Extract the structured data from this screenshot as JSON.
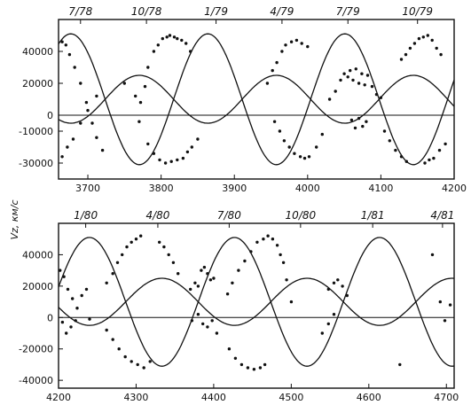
{
  "ylabel": "Vz, км/с",
  "chart_data": [
    {
      "type": "scatter",
      "panel": "top",
      "title": "",
      "xlabel": "",
      "ylabel": "Vz, км/с",
      "xlim": [
        3660,
        4200
      ],
      "ylim": [
        -40000,
        60000
      ],
      "x_ticks": [
        "3700",
        "3800",
        "3900",
        "4000",
        "4100",
        "4200"
      ],
      "x_tick_values": [
        3700,
        3800,
        3900,
        4000,
        4100,
        4200
      ],
      "y_ticks": [
        "40000",
        "20000",
        "0",
        "-10000",
        "-30000"
      ],
      "y_tick_values": [
        40000,
        20000,
        0,
        -10000,
        -30000
      ],
      "top_axis_labels": [
        "7/78",
        "10/78",
        "1/79",
        "4/79",
        "7/79",
        "10/79"
      ],
      "top_axis_values": [
        3690,
        3780,
        3875,
        3965,
        4055,
        4150
      ],
      "zero_line": true,
      "grid": false,
      "curves": [
        {
          "name": "",
          "period": 187,
          "phase": 3660,
          "mean": 10000,
          "amplitude": 41000,
          "min_phase": 0.59
        },
        {
          "name": "",
          "period": 187,
          "phase": 3660,
          "mean": 10000,
          "amplitude": -15000,
          "min_phase": 0.59
        }
      ],
      "points": [
        [
          3665,
          46000
        ],
        [
          3670,
          44000
        ],
        [
          3675,
          38000
        ],
        [
          3682,
          30000
        ],
        [
          3690,
          20000
        ],
        [
          3698,
          8000
        ],
        [
          3706,
          -5000
        ],
        [
          3712,
          -14000
        ],
        [
          3720,
          -22000
        ],
        [
          3665,
          -26000
        ],
        [
          3672,
          -20000
        ],
        [
          3680,
          -15000
        ],
        [
          3690,
          -5000
        ],
        [
          3700,
          3000
        ],
        [
          3712,
          12000
        ],
        [
          3750,
          20000
        ],
        [
          3765,
          12000
        ],
        [
          3772,
          8000
        ],
        [
          3778,
          18000
        ],
        [
          3782,
          30000
        ],
        [
          3790,
          40000
        ],
        [
          3796,
          44000
        ],
        [
          3802,
          48000
        ],
        [
          3808,
          49000
        ],
        [
          3812,
          50000
        ],
        [
          3818,
          49000
        ],
        [
          3822,
          48000
        ],
        [
          3828,
          47000
        ],
        [
          3834,
          45000
        ],
        [
          3840,
          40000
        ],
        [
          3770,
          -4000
        ],
        [
          3782,
          -18000
        ],
        [
          3790,
          -24000
        ],
        [
          3798,
          -28000
        ],
        [
          3806,
          -30000
        ],
        [
          3814,
          -29000
        ],
        [
          3822,
          -28000
        ],
        [
          3830,
          -27000
        ],
        [
          3836,
          -23000
        ],
        [
          3842,
          -20000
        ],
        [
          3850,
          -15000
        ],
        [
          3945,
          20000
        ],
        [
          3952,
          28000
        ],
        [
          3958,
          33000
        ],
        [
          3965,
          40000
        ],
        [
          3970,
          44000
        ],
        [
          3978,
          46000
        ],
        [
          3985,
          47000
        ],
        [
          3992,
          45000
        ],
        [
          4000,
          43000
        ],
        [
          3955,
          -4000
        ],
        [
          3962,
          -10000
        ],
        [
          3968,
          -16000
        ],
        [
          3975,
          -20000
        ],
        [
          3982,
          -24000
        ],
        [
          3990,
          -26000
        ],
        [
          3996,
          -27000
        ],
        [
          4002,
          -26000
        ],
        [
          4012,
          -20000
        ],
        [
          4020,
          -12000
        ],
        [
          4030,
          10000
        ],
        [
          4038,
          15000
        ],
        [
          4045,
          22000
        ],
        [
          4050,
          26000
        ],
        [
          4055,
          24000
        ],
        [
          4058,
          28000
        ],
        [
          4062,
          22000
        ],
        [
          4066,
          29000
        ],
        [
          4070,
          20000
        ],
        [
          4074,
          26000
        ],
        [
          4078,
          19000
        ],
        [
          4082,
          25000
        ],
        [
          4088,
          18000
        ],
        [
          4094,
          13000
        ],
        [
          4100,
          11000
        ],
        [
          4060,
          -3000
        ],
        [
          4065,
          -8000
        ],
        [
          4070,
          -2000
        ],
        [
          4075,
          -7000
        ],
        [
          4080,
          -4000
        ],
        [
          4105,
          -10000
        ],
        [
          4112,
          -16000
        ],
        [
          4120,
          -22000
        ],
        [
          4128,
          -26000
        ],
        [
          4135,
          -29000
        ],
        [
          4128,
          35000
        ],
        [
          4134,
          38000
        ],
        [
          4140,
          42000
        ],
        [
          4146,
          45000
        ],
        [
          4152,
          48000
        ],
        [
          4158,
          49000
        ],
        [
          4164,
          50000
        ],
        [
          4170,
          47000
        ],
        [
          4176,
          42000
        ],
        [
          4182,
          38000
        ],
        [
          4160,
          -30000
        ],
        [
          4166,
          -28000
        ],
        [
          4172,
          -27000
        ],
        [
          4180,
          -22000
        ],
        [
          4188,
          -18000
        ]
      ]
    },
    {
      "type": "scatter",
      "panel": "bottom",
      "title": "",
      "xlabel": "",
      "ylabel": "",
      "xlim": [
        4200,
        4710
      ],
      "ylim": [
        -45000,
        60000
      ],
      "x_ticks": [
        "4200",
        "4300",
        "4400",
        "4500",
        "4600",
        "4700"
      ],
      "x_tick_values": [
        4200,
        4300,
        4400,
        4500,
        4600,
        4700
      ],
      "y_ticks": [
        "40000",
        "20000",
        "0",
        "-20000",
        "-40000"
      ],
      "y_tick_values": [
        40000,
        20000,
        0,
        -20000,
        -40000
      ],
      "top_axis_labels": [
        "1/80",
        "4/80",
        "7/80",
        "10/80",
        "1/81",
        "4/81"
      ],
      "top_axis_values": [
        4235,
        4328,
        4420,
        4512,
        4605,
        4695
      ],
      "zero_line": true,
      "grid": false,
      "curves": [
        {
          "name": "",
          "period": 187,
          "phase": 4223,
          "mean": 10000,
          "amplitude": 41000,
          "min_phase": 0.59
        },
        {
          "name": "",
          "period": 187,
          "phase": 4223,
          "mean": 10000,
          "amplitude": -15000,
          "min_phase": 0.59
        }
      ],
      "points": [
        [
          4202,
          30000
        ],
        [
          4207,
          26000
        ],
        [
          4212,
          18000
        ],
        [
          4218,
          12000
        ],
        [
          4224,
          6000
        ],
        [
          4230,
          14000
        ],
        [
          4236,
          18000
        ],
        [
          4205,
          -3000
        ],
        [
          4210,
          -10000
        ],
        [
          4216,
          -6000
        ],
        [
          4222,
          -2000
        ],
        [
          4240,
          -1000
        ],
        [
          4262,
          22000
        ],
        [
          4270,
          28000
        ],
        [
          4276,
          35000
        ],
        [
          4282,
          40000
        ],
        [
          4288,
          45000
        ],
        [
          4294,
          48000
        ],
        [
          4300,
          50000
        ],
        [
          4306,
          52000
        ],
        [
          4262,
          -8000
        ],
        [
          4270,
          -14000
        ],
        [
          4278,
          -20000
        ],
        [
          4286,
          -25000
        ],
        [
          4294,
          -28000
        ],
        [
          4302,
          -30000
        ],
        [
          4310,
          -32000
        ],
        [
          4318,
          -28000
        ],
        [
          4330,
          48000
        ],
        [
          4336,
          45000
        ],
        [
          4342,
          40000
        ],
        [
          4348,
          35000
        ],
        [
          4354,
          28000
        ],
        [
          4370,
          18000
        ],
        [
          4376,
          22000
        ],
        [
          4380,
          20000
        ],
        [
          4384,
          30000
        ],
        [
          4388,
          32000
        ],
        [
          4392,
          28000
        ],
        [
          4396,
          24000
        ],
        [
          4400,
          25000
        ],
        [
          4372,
          -2000
        ],
        [
          4380,
          2000
        ],
        [
          4386,
          -4000
        ],
        [
          4392,
          -6000
        ],
        [
          4398,
          -2000
        ],
        [
          4404,
          -10000
        ],
        [
          4418,
          15000
        ],
        [
          4424,
          22000
        ],
        [
          4432,
          30000
        ],
        [
          4440,
          36000
        ],
        [
          4448,
          42000
        ],
        [
          4456,
          48000
        ],
        [
          4464,
          50000
        ],
        [
          4470,
          52000
        ],
        [
          4476,
          50000
        ],
        [
          4482,
          46000
        ],
        [
          4420,
          -20000
        ],
        [
          4428,
          -26000
        ],
        [
          4436,
          -30000
        ],
        [
          4444,
          -32000
        ],
        [
          4452,
          -33000
        ],
        [
          4460,
          -32000
        ],
        [
          4466,
          -30000
        ],
        [
          4486,
          40000
        ],
        [
          4490,
          35000
        ],
        [
          4494,
          24000
        ],
        [
          4500,
          10000
        ],
        [
          4548,
          18000
        ],
        [
          4555,
          22000
        ],
        [
          4560,
          24000
        ],
        [
          4566,
          20000
        ],
        [
          4572,
          14000
        ],
        [
          4540,
          -10000
        ],
        [
          4548,
          -4000
        ],
        [
          4555,
          2000
        ],
        [
          4640,
          -30000
        ],
        [
          4682,
          40000
        ],
        [
          4692,
          10000
        ],
        [
          4698,
          -2000
        ],
        [
          4705,
          8000
        ]
      ]
    }
  ]
}
